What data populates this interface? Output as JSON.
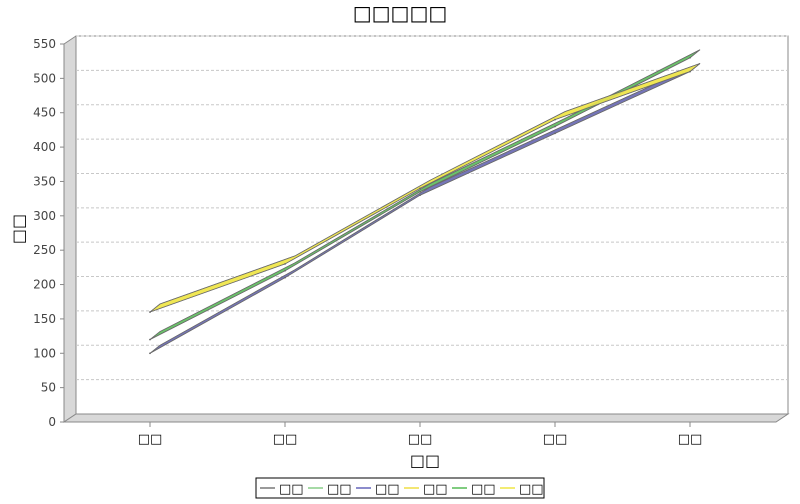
{
  "chart_data": {
    "type": "line",
    "title": "□□□□□",
    "xlabel": "□□",
    "ylabel": "□□",
    "categories": [
      "□□",
      "□□",
      "□□",
      "□□",
      "□□"
    ],
    "ylim": [
      0,
      550
    ],
    "yticks": [
      0,
      50,
      100,
      150,
      200,
      250,
      300,
      350,
      400,
      450,
      500,
      550
    ],
    "grid": true,
    "legend_position": "bottom",
    "style": "3d-line",
    "series": [
      {
        "name": "□□",
        "color": "#808080",
        "values": [
          100,
          210,
          330,
          420,
          510
        ]
      },
      {
        "name": "□□",
        "color": "#90d090",
        "values": [
          120,
          220,
          335,
          430,
          530
        ]
      },
      {
        "name": "□□",
        "color": "#7070c0",
        "values": [
          100,
          210,
          330,
          420,
          510
        ]
      },
      {
        "name": "□□",
        "color": "#f0e050",
        "values": [
          160,
          230,
          340,
          440,
          510
        ]
      },
      {
        "name": "□□",
        "color": "#60c060",
        "values": [
          120,
          220,
          335,
          430,
          530
        ]
      },
      {
        "name": "□□",
        "color": "#f0e850",
        "values": [
          160,
          230,
          340,
          440,
          510
        ]
      }
    ]
  }
}
